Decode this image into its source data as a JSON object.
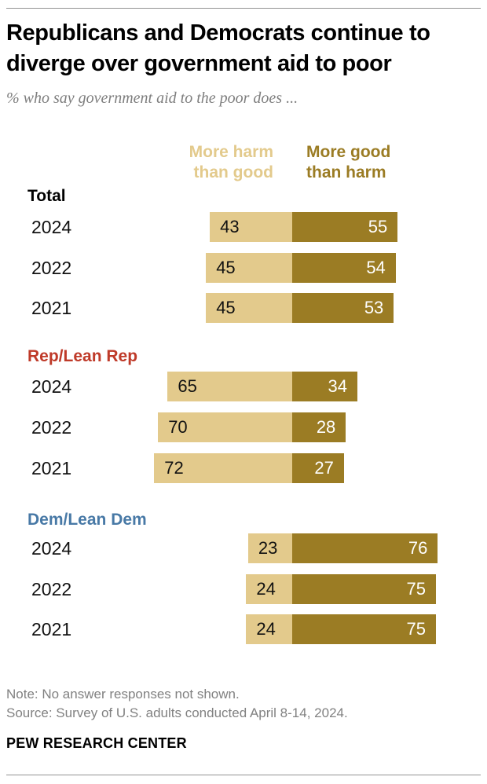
{
  "chart_data": {
    "type": "bar",
    "orientation": "horizontal-diverging-stacked",
    "unit": "%",
    "title": "Republicans and Democrats continue to diverge over government aid to poor",
    "title_lines": [
      "Republicans and Democrats continue to",
      "diverge over government aid to poor"
    ],
    "subtitle": "% who say government aid to the poor does ...",
    "legend": [
      {
        "label": "More harm than good",
        "color": "#e3ca8c"
      },
      {
        "label": "More good than harm",
        "color": "#9b7c24"
      }
    ],
    "grid": false,
    "axes_visible": false,
    "legend_position": "top",
    "groups": [
      {
        "label": "Total",
        "label_color": "#000000",
        "rows": [
          {
            "year": "2024",
            "harm": 43,
            "good": 55
          },
          {
            "year": "2022",
            "harm": 45,
            "good": 54
          },
          {
            "year": "2021",
            "harm": 45,
            "good": 53
          }
        ]
      },
      {
        "label": "Rep/Lean Rep",
        "label_color": "#bf3a29",
        "rows": [
          {
            "year": "2024",
            "harm": 65,
            "good": 34
          },
          {
            "year": "2022",
            "harm": 70,
            "good": 28
          },
          {
            "year": "2021",
            "harm": 72,
            "good": 27
          }
        ]
      },
      {
        "label": "Dem/Lean Dem",
        "label_color": "#4879a6",
        "rows": [
          {
            "year": "2024",
            "harm": 23,
            "good": 76
          },
          {
            "year": "2022",
            "harm": 24,
            "good": 75
          },
          {
            "year": "2021",
            "harm": 24,
            "good": 75
          }
        ]
      }
    ]
  },
  "footer": {
    "note": "Note: No answer responses not shown.",
    "source": "Source: Survey of U.S. adults conducted April 8-14, 2024.",
    "brand": "PEW RESEARCH CENTER"
  },
  "colors": {
    "bar_light": "#e3ca8c",
    "bar_dark": "#9b7c24",
    "rep_red": "#bf3a29",
    "dem_blue": "#4879a6",
    "footer_gray": "#818181",
    "rule_gray": "#929292"
  }
}
